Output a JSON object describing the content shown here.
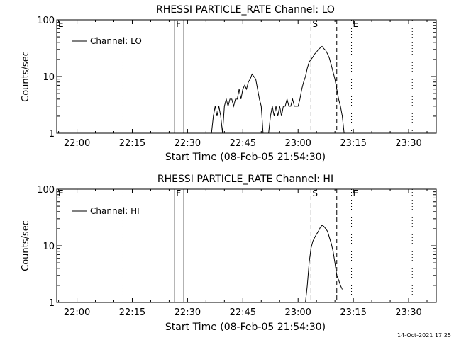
{
  "footer": {
    "timestamp": "14-Oct-2021 17:25"
  },
  "chart_data": [
    {
      "type": "line",
      "title": "RHESSI PARTICLE_RATE Channel: LO",
      "xlabel": "Start Time (08-Feb-05 21:54:30)",
      "ylabel": "Counts/sec",
      "y_scale": "log",
      "ylim": [
        1,
        100
      ],
      "xlim": [
        "21:54:30",
        "23:37:30"
      ],
      "x_ticks": [
        "22:00",
        "22:15",
        "22:30",
        "22:45",
        "23:00",
        "23:15",
        "23:30"
      ],
      "y_ticks": [
        "1",
        "10",
        "100"
      ],
      "legend": {
        "position": "top-left",
        "entries": [
          "Channel: LO"
        ]
      },
      "markers": [
        {
          "label": "E",
          "time": "21:54:30",
          "style": "dotted"
        },
        {
          "label": "",
          "time": "22:12:30",
          "style": "dotted"
        },
        {
          "label": "F",
          "time": "22:26:30",
          "style": "solid"
        },
        {
          "label": "",
          "time": "22:29:00",
          "style": "solid"
        },
        {
          "label": "S",
          "time": "23:03:30",
          "style": "dashed"
        },
        {
          "label": "",
          "time": "23:10:30",
          "style": "dashed"
        },
        {
          "label": "E",
          "time": "23:14:30",
          "style": "dotted"
        },
        {
          "label": "",
          "time": "23:31:00",
          "style": "dotted"
        }
      ],
      "series": [
        {
          "name": "Channel: LO",
          "x": [
            "22:36:30",
            "22:37:00",
            "22:37:30",
            "22:38:00",
            "22:38:30",
            "22:39:00",
            "22:39:30",
            "22:40:00",
            "22:40:30",
            "22:41:00",
            "22:41:30",
            "22:42:00",
            "22:42:30",
            "22:43:00",
            "22:43:30",
            "22:44:00",
            "22:44:30",
            "22:45:00",
            "22:45:30",
            "22:46:00",
            "22:46:30",
            "22:47:00",
            "22:47:30",
            "22:48:00",
            "22:48:30",
            "22:49:00",
            "22:49:30",
            "22:50:00",
            "22:50:30",
            "22:51:00",
            "22:51:30",
            "22:52:00",
            "22:52:30",
            "22:53:00",
            "22:53:30",
            "22:54:00",
            "22:54:30",
            "22:55:00",
            "22:55:30",
            "22:56:00",
            "22:56:30",
            "22:57:00",
            "22:57:30",
            "22:58:00",
            "22:58:30",
            "22:59:00",
            "22:59:30",
            "23:00:00",
            "23:00:30",
            "23:01:00",
            "23:01:30",
            "23:02:00",
            "23:02:30",
            "23:03:00",
            "23:03:30",
            "23:04:00",
            "23:04:30",
            "23:05:00",
            "23:05:30",
            "23:06:00",
            "23:06:30",
            "23:07:00",
            "23:07:30",
            "23:08:00",
            "23:08:30",
            "23:09:00",
            "23:09:30",
            "23:10:00",
            "23:10:30",
            "23:11:00",
            "23:11:30",
            "23:12:00",
            "23:12:30",
            "23:13:00"
          ],
          "values": [
            1,
            2,
            3,
            2,
            3,
            2,
            1,
            3,
            4,
            3,
            4,
            4,
            3,
            4,
            4,
            6,
            4,
            6,
            7,
            6,
            8,
            9,
            11,
            10,
            9,
            6,
            4,
            3,
            1,
            1,
            1,
            1,
            2,
            3,
            2,
            3,
            2,
            3,
            2,
            3,
            3,
            4,
            3,
            3,
            4,
            3,
            3,
            3,
            4,
            6,
            8,
            10,
            14,
            18,
            20,
            22,
            25,
            27,
            30,
            32,
            34,
            31,
            29,
            25,
            21,
            16,
            12,
            9,
            6,
            4,
            3,
            2,
            1,
            1
          ]
        }
      ]
    },
    {
      "type": "line",
      "title": "RHESSI PARTICLE_RATE Channel: HI",
      "xlabel": "Start Time (08-Feb-05 21:54:30)",
      "ylabel": "Counts/sec",
      "y_scale": "log",
      "ylim": [
        1,
        100
      ],
      "xlim": [
        "21:54:30",
        "23:37:30"
      ],
      "x_ticks": [
        "22:00",
        "22:15",
        "22:30",
        "22:45",
        "23:00",
        "23:15",
        "23:30"
      ],
      "y_ticks": [
        "1",
        "10",
        "100"
      ],
      "legend": {
        "position": "top-left",
        "entries": [
          "Channel: HI"
        ]
      },
      "markers": [
        {
          "label": "E",
          "time": "21:54:30",
          "style": "dotted"
        },
        {
          "label": "",
          "time": "22:12:30",
          "style": "dotted"
        },
        {
          "label": "F",
          "time": "22:26:30",
          "style": "solid"
        },
        {
          "label": "",
          "time": "22:29:00",
          "style": "solid"
        },
        {
          "label": "S",
          "time": "23:03:30",
          "style": "dashed"
        },
        {
          "label": "",
          "time": "23:10:30",
          "style": "dashed"
        },
        {
          "label": "E",
          "time": "23:14:30",
          "style": "dotted"
        },
        {
          "label": "",
          "time": "23:31:00",
          "style": "dotted"
        }
      ],
      "series": [
        {
          "name": "Channel: HI",
          "x": [
            "23:02:00",
            "23:02:30",
            "23:03:00",
            "23:03:30",
            "23:04:00",
            "23:04:30",
            "23:05:00",
            "23:05:30",
            "23:06:00",
            "23:06:30",
            "23:07:00",
            "23:07:30",
            "23:08:00",
            "23:08:30",
            "23:09:00",
            "23:09:30",
            "23:10:00",
            "23:10:30",
            "23:11:00",
            "23:11:30",
            "23:12:00"
          ],
          "values": [
            1,
            2,
            5,
            9,
            12,
            14,
            16,
            18,
            21,
            23,
            22,
            20,
            18,
            14,
            11,
            8,
            5,
            3,
            2.5,
            2,
            1.7
          ]
        }
      ]
    }
  ]
}
